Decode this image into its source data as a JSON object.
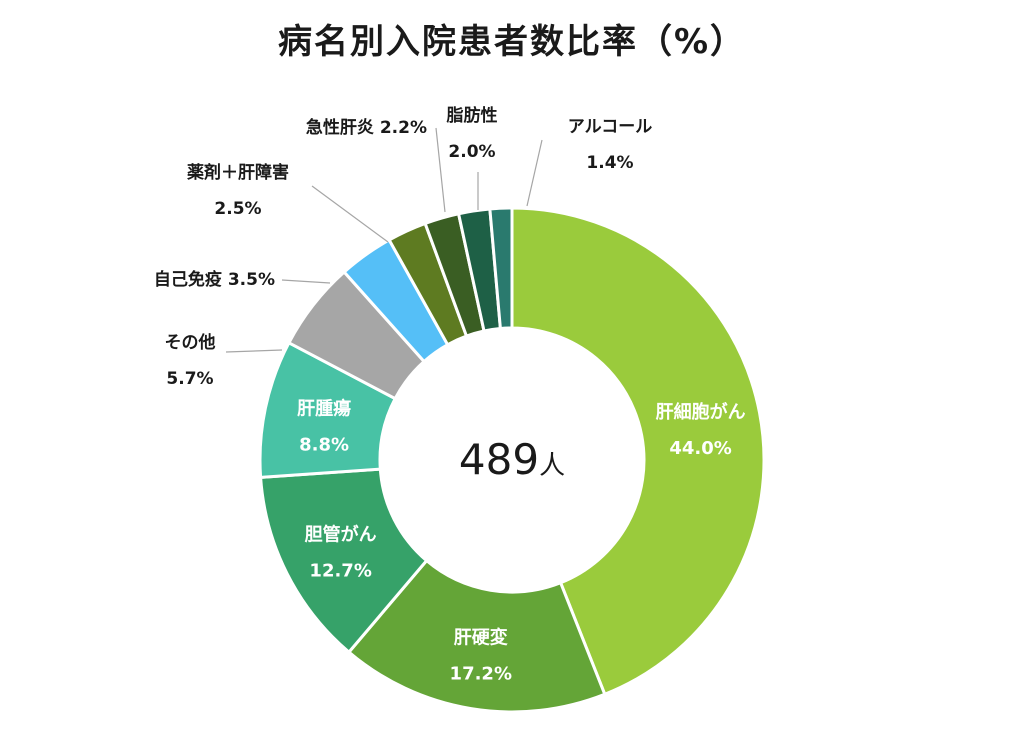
{
  "chart_data": {
    "type": "pie",
    "subtype": "donut",
    "title": "病名別入院患者数比率（%）",
    "center_value": "489",
    "center_unit": "人",
    "unit": "%",
    "legend": "none",
    "slices": [
      {
        "label": "肝細胞がん",
        "value": 44.0,
        "value_text": "44.0%",
        "color": "#9ACB3C"
      },
      {
        "label": "肝硬変",
        "value": 17.2,
        "value_text": "17.2%",
        "color": "#64A537"
      },
      {
        "label": "胆管がん",
        "value": 12.7,
        "value_text": "12.7%",
        "color": "#36A269"
      },
      {
        "label": "肝腫瘍",
        "value": 8.8,
        "value_text": "8.8%",
        "color": "#48C2A5"
      },
      {
        "label": "その他",
        "value": 5.7,
        "value_text": "5.7%",
        "color": "#A6A6A6"
      },
      {
        "label": "自己免疫",
        "value": 3.5,
        "value_text": "3.5%",
        "color": "#55BFF7"
      },
      {
        "label": "薬剤＋肝障害",
        "value": 2.5,
        "value_text": "2.5%",
        "color": "#5E7B21"
      },
      {
        "label": "急性肝炎",
        "value": 2.2,
        "value_text": "2.2%",
        "color": "#3A5E23"
      },
      {
        "label": "脂肪性",
        "value": 2.0,
        "value_text": "2.0%",
        "color": "#1E6046"
      },
      {
        "label": "アルコール",
        "value": 1.4,
        "value_text": "1.4%",
        "color": "#2A7A6E"
      }
    ]
  }
}
